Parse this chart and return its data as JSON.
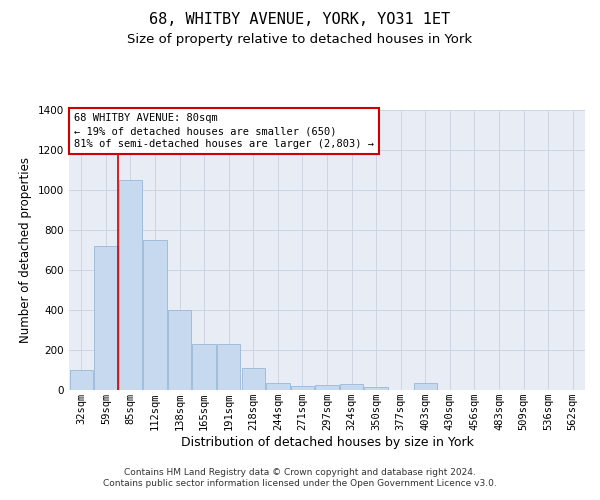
{
  "title": "68, WHITBY AVENUE, YORK, YO31 1ET",
  "subtitle": "Size of property relative to detached houses in York",
  "xlabel": "Distribution of detached houses by size in York",
  "ylabel": "Number of detached properties",
  "categories": [
    "32sqm",
    "59sqm",
    "85sqm",
    "112sqm",
    "138sqm",
    "165sqm",
    "191sqm",
    "218sqm",
    "244sqm",
    "271sqm",
    "297sqm",
    "324sqm",
    "350sqm",
    "377sqm",
    "403sqm",
    "430sqm",
    "456sqm",
    "483sqm",
    "509sqm",
    "536sqm",
    "562sqm"
  ],
  "values": [
    100,
    720,
    1050,
    750,
    400,
    230,
    230,
    110,
    35,
    20,
    25,
    28,
    16,
    0,
    35,
    0,
    0,
    0,
    0,
    0,
    0
  ],
  "bar_color": "#c6d9ee",
  "bar_edge_color": "#9ab8d8",
  "highlight_index": 1,
  "highlight_line_color": "#cc0000",
  "annotation_text": "68 WHITBY AVENUE: 80sqm\n← 19% of detached houses are smaller (650)\n81% of semi-detached houses are larger (2,803) →",
  "annotation_box_edge_color": "#cc0000",
  "ylim": [
    0,
    1400
  ],
  "yticks": [
    0,
    200,
    400,
    600,
    800,
    1000,
    1200,
    1400
  ],
  "grid_color": "#cdd5e3",
  "background_color": "#e8edf5",
  "footer_text": "Contains HM Land Registry data © Crown copyright and database right 2024.\nContains public sector information licensed under the Open Government Licence v3.0.",
  "title_fontsize": 11,
  "subtitle_fontsize": 9.5,
  "xlabel_fontsize": 9,
  "ylabel_fontsize": 8.5,
  "tick_fontsize": 7.5,
  "annotation_fontsize": 7.5,
  "footer_fontsize": 6.5
}
